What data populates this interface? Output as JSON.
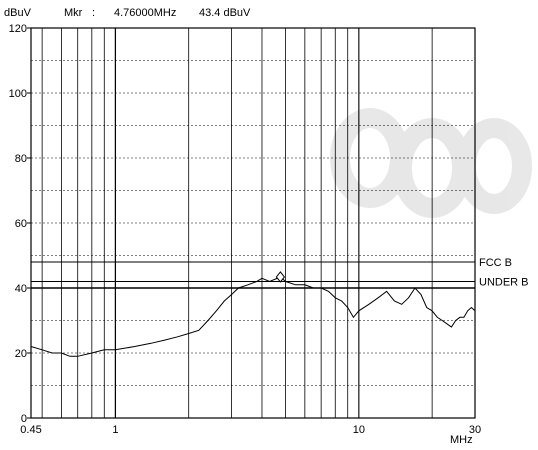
{
  "chart_data": {
    "type": "line",
    "title": "",
    "ylabel": "dBuV",
    "xlabel": "MHz",
    "xscale": "log",
    "xlim": [
      0.45,
      30
    ],
    "ylim": [
      0,
      120
    ],
    "yticks": [
      0,
      20,
      40,
      60,
      80,
      100,
      120
    ],
    "xticks": [
      {
        "value": 0.45,
        "label": "0.45"
      },
      {
        "value": 1,
        "label": "1"
      },
      {
        "value": 10,
        "label": "10"
      },
      {
        "value": 30,
        "label": "30"
      }
    ],
    "grid": true,
    "marker": {
      "prefix": "Mkr",
      "separator": ":",
      "freq_text": "4.76000MHz",
      "level_text": "43.4 dBuV",
      "x": 4.76,
      "y": 43.4
    },
    "limit_lines": [
      {
        "name": "FCC B",
        "y": 48
      },
      {
        "name": "UNDER B",
        "y": 42
      }
    ],
    "reference_line_y": 40,
    "series": [
      {
        "x": [
          0.45,
          0.5,
          0.55,
          0.6,
          0.65,
          0.7,
          0.8,
          0.9,
          1.0,
          1.2,
          1.4,
          1.6,
          1.8,
          2.0,
          2.2,
          2.4,
          2.6,
          2.8,
          3.0,
          3.2,
          3.5,
          3.8,
          4.0,
          4.3,
          4.76,
          5.0,
          5.5,
          6.0,
          6.5,
          7.0,
          7.5,
          8.0,
          8.5,
          9.0,
          9.5,
          10.0,
          11.0,
          12.0,
          13.0,
          14.0,
          15.0,
          16.0,
          17.0,
          18.0,
          19.0,
          20.0,
          21.0,
          22.0,
          23.0,
          24.0,
          25.0,
          26.0,
          27.0,
          28.0,
          29.0,
          30.0
        ],
        "values": [
          22,
          21,
          20,
          20,
          19,
          19,
          20,
          21,
          21,
          22,
          23,
          24,
          25,
          26,
          27,
          30,
          33,
          36,
          38,
          40,
          41,
          42,
          43,
          42,
          43.4,
          42,
          41,
          41,
          40,
          40,
          39,
          37,
          36,
          34,
          31,
          33,
          35,
          37,
          39,
          36,
          35,
          37,
          40,
          38,
          34,
          33,
          31,
          30,
          29,
          28,
          30,
          31,
          31,
          33,
          34,
          33
        ]
      }
    ]
  }
}
